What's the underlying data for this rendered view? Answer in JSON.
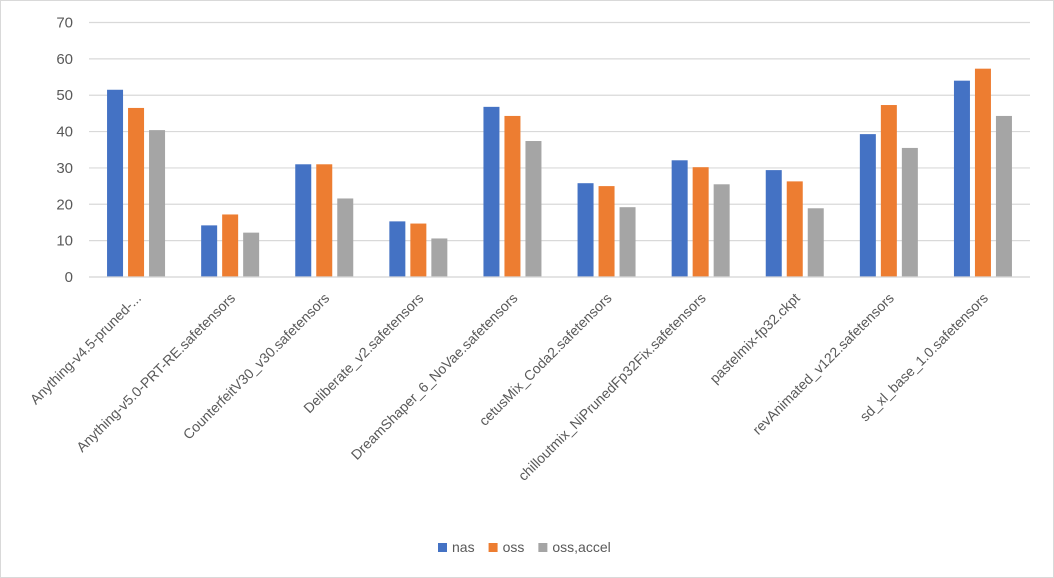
{
  "chart_data": {
    "type": "bar",
    "title": "",
    "xlabel": "",
    "ylabel": "",
    "ylim": [
      0,
      70
    ],
    "yticks": [
      0,
      10,
      20,
      30,
      40,
      50,
      60,
      70
    ],
    "grid": true,
    "legend_position": "bottom",
    "categories": [
      "Anything-v4.5-pruned-...",
      "Anything-v5.0-PRT-RE.safetensors",
      "CounterfeitV30_v30.safetensors",
      "Deliberate_v2.safetensors",
      "DreamShaper_6_NoVae.safetensors",
      "cetusMix_Coda2.safetensors",
      "chilloutmix_NiPrunedFp32Fix.safetensors",
      "pastelmix-fp32.ckpt",
      "revAnimated_v122.safetensors",
      "sd_xl_base_1.0.safetensors"
    ],
    "series": [
      {
        "name": "nas",
        "color": "#4472c4",
        "values": [
          51.5,
          14.2,
          31.0,
          15.3,
          46.8,
          25.8,
          32.1,
          29.4,
          39.3,
          54.0
        ]
      },
      {
        "name": "oss",
        "color": "#ed7d31",
        "values": [
          46.5,
          17.2,
          31.0,
          14.7,
          44.3,
          25.0,
          30.2,
          26.3,
          47.3,
          57.3
        ]
      },
      {
        "name": "oss,accel",
        "color": "#a5a5a5",
        "values": [
          40.4,
          12.2,
          21.6,
          10.6,
          37.4,
          19.2,
          25.5,
          18.9,
          35.5,
          44.3
        ]
      }
    ]
  }
}
